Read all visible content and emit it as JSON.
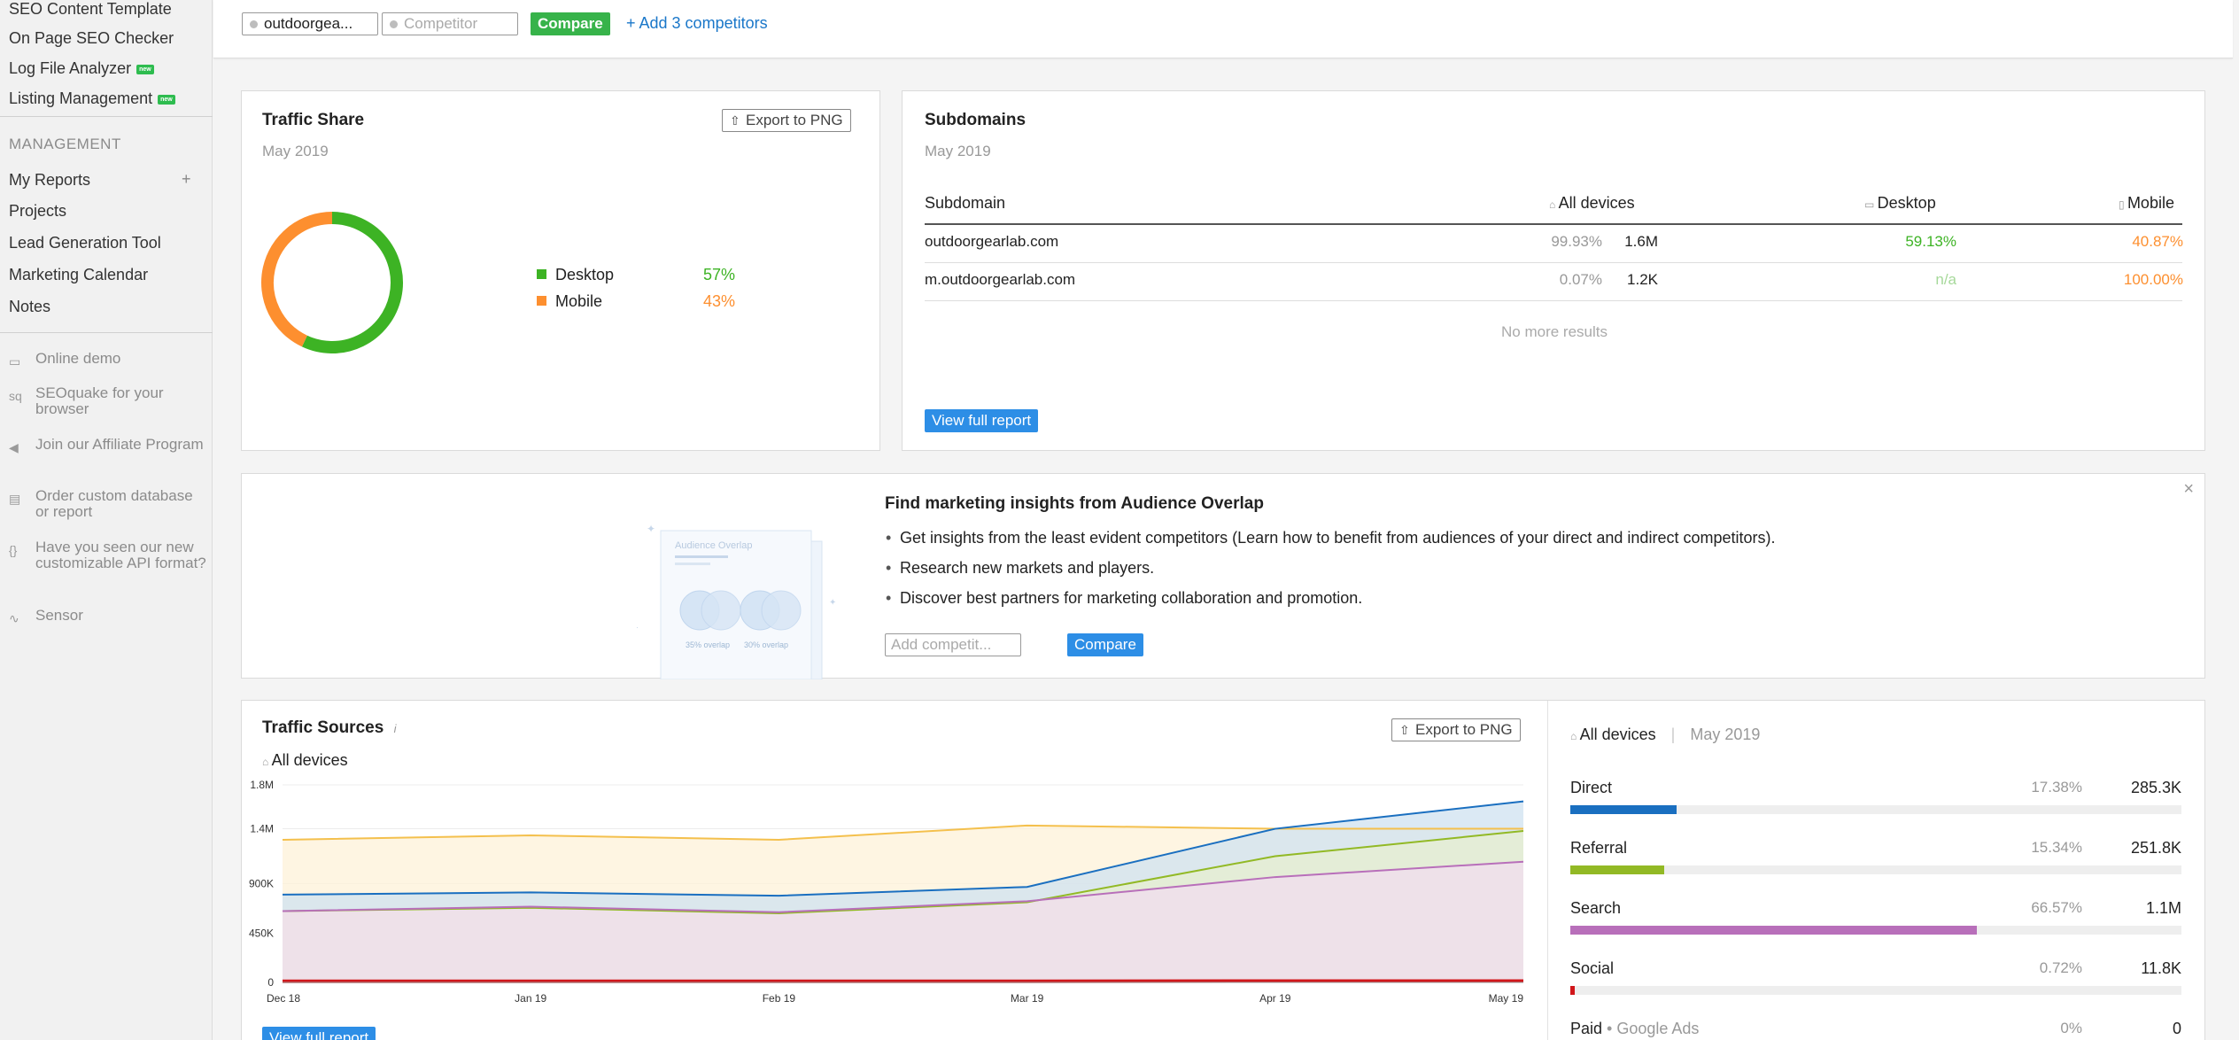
{
  "sidebar": {
    "tools": [
      {
        "label": "SEO Content Template",
        "new": false
      },
      {
        "label": "On Page SEO Checker",
        "new": false
      },
      {
        "label": "Log File Analyzer",
        "new": true
      },
      {
        "label": "Listing Management",
        "new": true
      }
    ],
    "new_badge": "new",
    "management_heading": "MANAGEMENT",
    "management": [
      "My Reports",
      "Projects",
      "Lead Generation Tool",
      "Marketing Calendar",
      "Notes"
    ],
    "add_symbol": "+",
    "extras": [
      {
        "label": "Online demo",
        "icon": "monitor-icon",
        "glyph": "▭"
      },
      {
        "label": "SEOquake for your browser",
        "icon": "seoquake-icon",
        "glyph": "sq"
      },
      {
        "label": "Join our Affiliate Program",
        "icon": "megaphone-icon",
        "glyph": "◀"
      },
      {
        "label": "Order custom database or report",
        "icon": "document-icon",
        "glyph": "▤"
      },
      {
        "label": "Have you seen our new customizable API format?",
        "icon": "braces-icon",
        "glyph": "{}"
      },
      {
        "label": "Sensor",
        "icon": "pulse-icon",
        "glyph": "∿"
      }
    ]
  },
  "topbar": {
    "domain": "outdoorgea...",
    "competitor_placeholder": "Competitor",
    "compare_label": "Compare",
    "add_competitors": "+  Add 3 competitors"
  },
  "traffic_share": {
    "title": "Traffic Share",
    "period": "May 2019",
    "export_label": "Export to PNG",
    "legend": [
      {
        "label": "Desktop",
        "value": "57%",
        "fraction": 0.57,
        "color": "#3db324"
      },
      {
        "label": "Mobile",
        "value": "43%",
        "fraction": 0.43,
        "color": "#fd8f2f"
      }
    ]
  },
  "subdomains": {
    "title": "Subdomains",
    "period": "May 2019",
    "headers": {
      "subdomain": "Subdomain",
      "all": "All devices",
      "desktop": "Desktop",
      "mobile": "Mobile"
    },
    "rows": [
      {
        "name": "outdoorgearlab.com",
        "all_pct": "99.93%",
        "all_val": "1.6M",
        "desktop": "59.13%",
        "mobile": "40.87%"
      },
      {
        "name": "m.outdoorgearlab.com",
        "all_pct": "0.07%",
        "all_val": "1.2K",
        "desktop": "n/a",
        "mobile": "100.00%"
      }
    ],
    "no_more": "No more results",
    "view_full": "View full report"
  },
  "overlap": {
    "title": "Find marketing insights from Audience Overlap",
    "bullets": [
      "Get insights from the least evident competitors (Learn how to benefit from audiences of your direct and indirect competitors).",
      "Research new markets and players.",
      "Discover best partners for marketing collaboration and promotion."
    ],
    "input_placeholder": "Add competit...",
    "compare_label": "Compare",
    "close_symbol": "×",
    "illustration": {
      "title": "Audience Overlap",
      "left": "35% overlap",
      "right": "30% overlap"
    }
  },
  "traffic_sources": {
    "title": "Traffic Sources",
    "info": "i",
    "device": "All devices",
    "export_label": "Export to PNG",
    "view_full": "View full report",
    "panel_device": "All devices",
    "panel_sep": "|",
    "panel_period": "May 2019",
    "sources": [
      {
        "name": "Direct",
        "pct": "17.38%",
        "value": "285.3K",
        "fraction": 0.1738,
        "color": "#1a6fc0"
      },
      {
        "name": "Referral",
        "pct": "15.34%",
        "value": "251.8K",
        "fraction": 0.1534,
        "color": "#92b925"
      },
      {
        "name": "Search",
        "pct": "66.57%",
        "value": "1.1M",
        "fraction": 0.6657,
        "color": "#b86fba"
      },
      {
        "name": "Social",
        "pct": "0.72%",
        "value": "11.8K",
        "fraction": 0.0072,
        "color": "#d1161a"
      }
    ],
    "paid": {
      "name": "Paid",
      "sub": "• Google Ads",
      "pct": "0%",
      "value": "0"
    }
  },
  "chart_data": {
    "type": "area",
    "x": [
      "Dec 18",
      "Jan 19",
      "Feb 19",
      "Mar 19",
      "Apr 19",
      "May 19"
    ],
    "y_ticks": [
      "1.8M",
      "1.4M",
      "900K",
      "450K",
      "0"
    ],
    "y_tick_values": [
      1800000,
      1400000,
      900000,
      450000,
      0
    ],
    "ylim": [
      0,
      1800000
    ],
    "series": [
      {
        "color": "#f4c04d",
        "fill": "#fdf1d8",
        "values": [
          1300000,
          1340000,
          1300000,
          1430000,
          1400000,
          1400000
        ]
      },
      {
        "color": "#1a6fc0",
        "fill": "#cfe1f0",
        "values": [
          800000,
          820000,
          790000,
          870000,
          1400000,
          1650000
        ]
      },
      {
        "color": "#92b925",
        "fill": "#e7efcf",
        "values": [
          650000,
          680000,
          630000,
          730000,
          1150000,
          1380000
        ]
      },
      {
        "color": "#b86fba",
        "fill": "#f1dcef",
        "values": [
          650000,
          690000,
          640000,
          740000,
          960000,
          1100000
        ]
      },
      {
        "color": "#d1161a",
        "fill": "#f3c9ca",
        "values": [
          10000,
          10000,
          10000,
          10000,
          12000,
          12000
        ]
      }
    ]
  }
}
